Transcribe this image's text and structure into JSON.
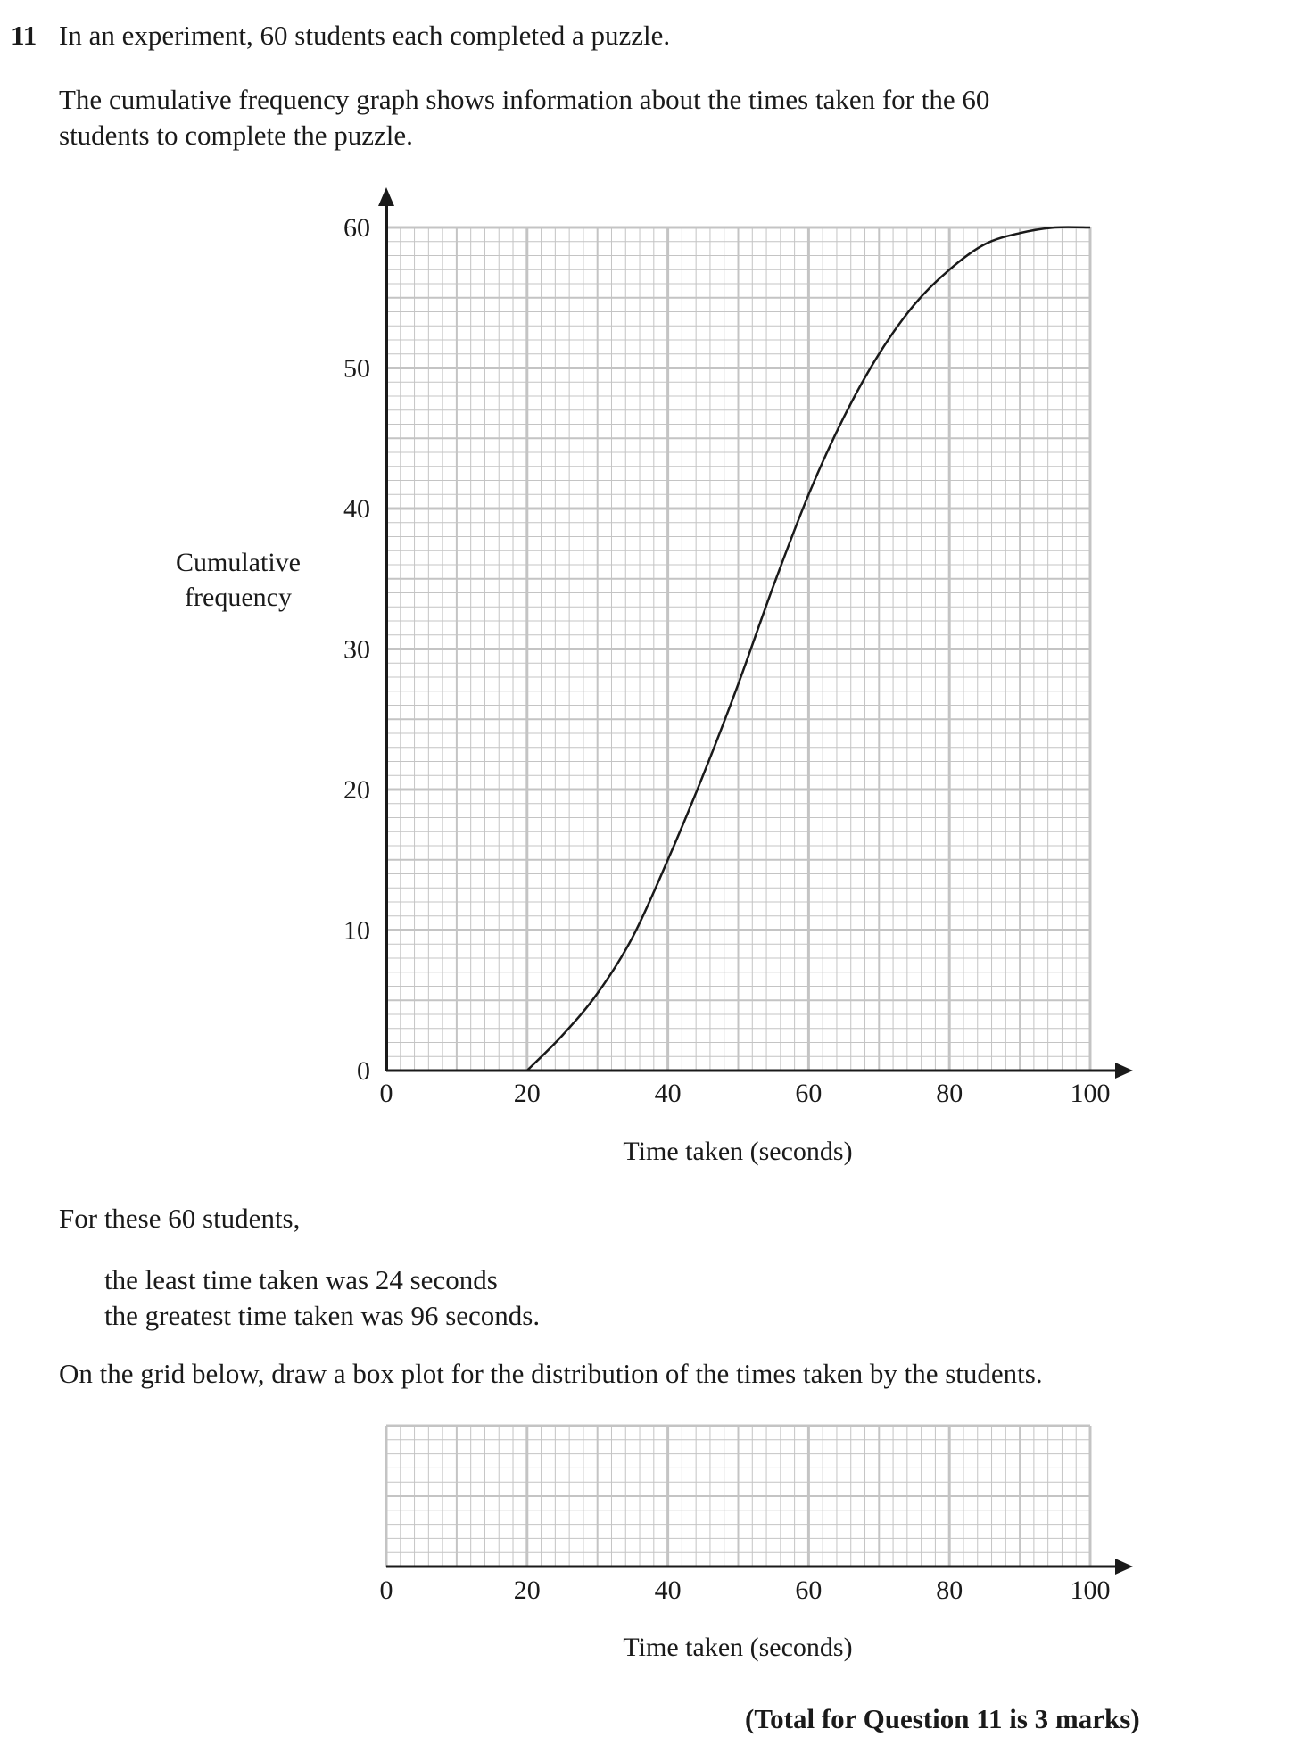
{
  "question": {
    "number": "11",
    "intro": "In an experiment, 60 students each completed a puzzle.",
    "description_line1": "The cumulative frequency graph shows information about the times taken for the 60",
    "description_line2": "students to complete the puzzle.",
    "for_these": "For these 60 students,",
    "least_time": "the least time taken was 24 seconds",
    "greatest_time": "the greatest time taken was 96 seconds.",
    "instruction": "On the grid below, draw a box plot for the distribution of the times taken by the students.",
    "total": "(Total for Question 11 is 3 marks)"
  },
  "chart_data": [
    {
      "type": "line",
      "title": "",
      "xlabel": "Time taken (seconds)",
      "ylabel_line1": "Cumulative",
      "ylabel_line2": "frequency",
      "xlim": [
        0,
        100
      ],
      "ylim": [
        0,
        60
      ],
      "x_ticks": [
        "0",
        "20",
        "40",
        "60",
        "80",
        "100"
      ],
      "y_ticks": [
        "0",
        "10",
        "20",
        "30",
        "40",
        "50",
        "60"
      ],
      "grid": true,
      "series": [
        {
          "x": [
            20,
            25,
            30,
            35,
            40,
            45,
            50,
            55,
            60,
            65,
            70,
            75,
            80,
            85,
            90,
            95,
            100
          ],
          "values": [
            0,
            2.5,
            5.5,
            9.5,
            15,
            21,
            27.5,
            34.5,
            41,
            46.5,
            51,
            54.5,
            57,
            58.8,
            59.6,
            60,
            60
          ]
        }
      ]
    },
    {
      "type": "table",
      "title": "",
      "xlabel": "Time taken (seconds)",
      "xlim": [
        0,
        100
      ],
      "x_ticks": [
        "0",
        "20",
        "40",
        "60",
        "80",
        "100"
      ],
      "grid": true
    }
  ]
}
